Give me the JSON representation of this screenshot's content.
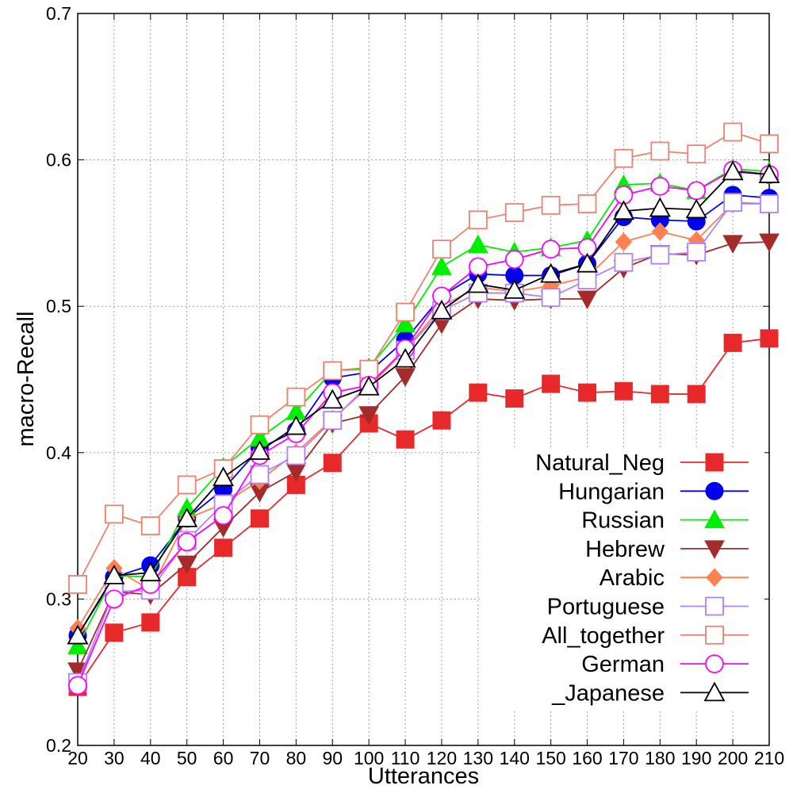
{
  "chart_data": {
    "type": "line",
    "title": "",
    "xlabel": "Utterances",
    "ylabel": "macro-Recall",
    "x": [
      20,
      30,
      40,
      50,
      60,
      70,
      80,
      90,
      100,
      110,
      120,
      130,
      140,
      150,
      160,
      170,
      180,
      190,
      200,
      210
    ],
    "xlim": [
      20,
      210
    ],
    "ylim": [
      0.2,
      0.7
    ],
    "yticks": [
      "0.2",
      "0.3",
      "0.4",
      "0.5",
      "0.6",
      "0.7"
    ],
    "xticks": [
      "20",
      "30",
      "40",
      "50",
      "60",
      "70",
      "80",
      "90",
      "100",
      "110",
      "120",
      "130",
      "140",
      "150",
      "160",
      "170",
      "180",
      "190",
      "200",
      "210"
    ],
    "grid": true,
    "legend_position": "bottom-right",
    "series": [
      {
        "name": "Natural_Neg",
        "color": "#e8292a",
        "marker": "square-filled",
        "values": [
          0.24,
          0.277,
          0.284,
          0.315,
          0.335,
          0.355,
          0.378,
          0.393,
          0.42,
          0.409,
          0.422,
          0.441,
          0.437,
          0.447,
          0.441,
          0.442,
          0.44,
          0.44,
          0.475,
          0.478
        ]
      },
      {
        "name": "Hungarian",
        "color": "#0000ee",
        "marker": "circle-filled",
        "values": [
          0.275,
          0.315,
          0.323,
          0.355,
          0.375,
          0.403,
          0.415,
          0.451,
          0.455,
          0.477,
          0.507,
          0.522,
          0.521,
          0.521,
          0.529,
          0.561,
          0.559,
          0.558,
          0.576,
          0.574
        ]
      },
      {
        "name": "Russian",
        "color": "#00ee00",
        "marker": "triangle-up-filled",
        "values": [
          0.268,
          0.316,
          0.315,
          0.362,
          0.39,
          0.41,
          0.428,
          0.456,
          0.458,
          0.488,
          0.527,
          0.542,
          0.537,
          0.54,
          0.545,
          0.583,
          0.584,
          0.579,
          0.594,
          0.592
        ]
      },
      {
        "name": "Hebrew",
        "color": "#a52a2a",
        "marker": "triangle-down-filled",
        "values": [
          0.251,
          0.305,
          0.303,
          0.324,
          0.349,
          0.373,
          0.387,
          0.42,
          0.426,
          0.452,
          0.488,
          0.505,
          0.504,
          0.505,
          0.505,
          0.526,
          0.536,
          0.535,
          0.543,
          0.544
        ]
      },
      {
        "name": "Arabic",
        "color": "#ff8050",
        "marker": "diamond-filled",
        "values": [
          0.28,
          0.321,
          0.306,
          0.355,
          0.365,
          0.381,
          0.4,
          0.423,
          0.445,
          0.47,
          0.5,
          0.513,
          0.51,
          0.514,
          0.52,
          0.544,
          0.551,
          0.545,
          0.57,
          0.57
        ]
      },
      {
        "name": "Portuguese",
        "color": "#b080ff",
        "marker": "square-open",
        "values": [
          0.243,
          0.305,
          0.306,
          0.34,
          0.365,
          0.385,
          0.398,
          0.422,
          0.447,
          0.47,
          0.497,
          0.509,
          0.509,
          0.506,
          0.518,
          0.53,
          0.535,
          0.537,
          0.571,
          0.57
        ]
      },
      {
        "name": "All_together",
        "color": "#f08070",
        "marker": "square-open",
        "values": [
          0.31,
          0.358,
          0.35,
          0.378,
          0.389,
          0.419,
          0.438,
          0.456,
          0.457,
          0.496,
          0.539,
          0.559,
          0.564,
          0.569,
          0.57,
          0.601,
          0.606,
          0.604,
          0.619,
          0.611
        ]
      },
      {
        "name": "German",
        "color": "#ff00ff",
        "marker": "circle-open",
        "values": [
          0.241,
          0.3,
          0.31,
          0.339,
          0.357,
          0.398,
          0.413,
          0.441,
          0.446,
          0.471,
          0.507,
          0.527,
          0.532,
          0.539,
          0.54,
          0.576,
          0.582,
          0.579,
          0.593,
          0.59
        ]
      },
      {
        "name": "_Japanese",
        "color": "#000000",
        "marker": "triangle-up-open",
        "values": [
          0.275,
          0.316,
          0.318,
          0.355,
          0.383,
          0.401,
          0.418,
          0.436,
          0.445,
          0.464,
          0.497,
          0.515,
          0.511,
          0.522,
          0.529,
          0.565,
          0.567,
          0.566,
          0.592,
          0.59
        ]
      }
    ]
  }
}
